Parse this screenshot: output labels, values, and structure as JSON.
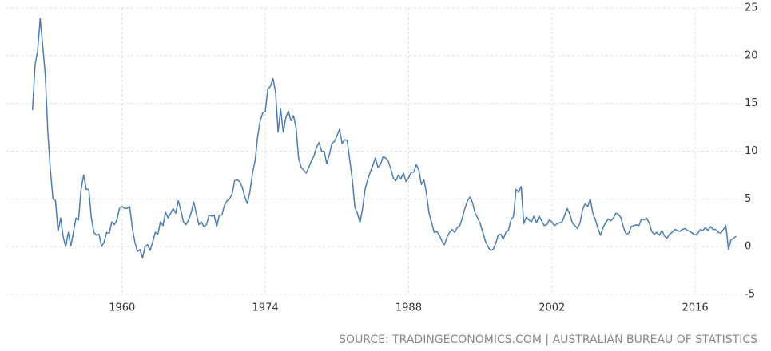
{
  "chart_data": {
    "type": "line",
    "source": "SOURCE: TRADINGECONOMICS.COM | AUSTRALIAN BUREAU OF STATISTICS",
    "xlim": [
      1948.7,
      2021.3
    ],
    "ylim": [
      -5,
      25
    ],
    "xticks": [
      1960,
      1974,
      1988,
      2002,
      2016
    ],
    "yticks": [
      -5,
      0,
      5,
      10,
      15,
      20,
      25
    ],
    "grid": true,
    "series": [
      {
        "color": "#4a7db3",
        "x": [
          1951.25,
          1951.5,
          1951.75,
          1952,
          1952.25,
          1952.5,
          1952.75,
          1953,
          1953.25,
          1953.5,
          1953.75,
          1954,
          1954.25,
          1954.5,
          1954.75,
          1955,
          1955.25,
          1955.5,
          1955.75,
          1956,
          1956.25,
          1956.5,
          1956.75,
          1957,
          1957.25,
          1957.5,
          1957.75,
          1958,
          1958.25,
          1958.5,
          1958.75,
          1959,
          1959.25,
          1959.5,
          1959.75,
          1960,
          1960.25,
          1960.5,
          1960.75,
          1961,
          1961.25,
          1961.5,
          1961.75,
          1962,
          1962.25,
          1962.5,
          1962.75,
          1963,
          1963.25,
          1963.5,
          1963.75,
          1964,
          1964.25,
          1964.5,
          1964.75,
          1965,
          1965.25,
          1965.5,
          1965.75,
          1966,
          1966.25,
          1966.5,
          1966.75,
          1967,
          1967.25,
          1967.5,
          1967.75,
          1968,
          1968.25,
          1968.5,
          1968.75,
          1969,
          1969.25,
          1969.5,
          1969.75,
          1970,
          1970.25,
          1970.5,
          1970.75,
          1971,
          1971.25,
          1971.5,
          1971.75,
          1972,
          1972.25,
          1972.5,
          1972.75,
          1973,
          1973.25,
          1973.5,
          1973.75,
          1974,
          1974.25,
          1974.5,
          1974.75,
          1975,
          1975.25,
          1975.5,
          1975.75,
          1976,
          1976.25,
          1976.5,
          1976.75,
          1977,
          1977.25,
          1977.5,
          1977.75,
          1978,
          1978.25,
          1978.5,
          1978.75,
          1979,
          1979.25,
          1979.5,
          1979.75,
          1980,
          1980.25,
          1980.5,
          1980.75,
          1981,
          1981.25,
          1981.5,
          1981.75,
          1982,
          1982.25,
          1982.5,
          1982.75,
          1983,
          1983.25,
          1983.5,
          1983.75,
          1984,
          1984.25,
          1984.5,
          1984.75,
          1985,
          1985.25,
          1985.5,
          1985.75,
          1986,
          1986.25,
          1986.5,
          1986.75,
          1987,
          1987.25,
          1987.5,
          1987.75,
          1988,
          1988.25,
          1988.5,
          1988.75,
          1989,
          1989.25,
          1989.5,
          1989.75,
          1990,
          1990.25,
          1990.5,
          1990.75,
          1991,
          1991.25,
          1991.5,
          1991.75,
          1992,
          1992.25,
          1992.5,
          1992.75,
          1993,
          1993.25,
          1993.5,
          1993.75,
          1994,
          1994.25,
          1994.5,
          1994.75,
          1995,
          1995.25,
          1995.5,
          1995.75,
          1996,
          1996.25,
          1996.5,
          1996.75,
          1997,
          1997.25,
          1997.5,
          1997.75,
          1998,
          1998.25,
          1998.5,
          1998.75,
          1999,
          1999.25,
          1999.5,
          1999.75,
          2000,
          2000.25,
          2000.5,
          2000.75,
          2001,
          2001.25,
          2001.5,
          2001.75,
          2002,
          2002.25,
          2002.5,
          2002.75,
          2003,
          2003.25,
          2003.5,
          2003.75,
          2004,
          2004.25,
          2004.5,
          2004.75,
          2005,
          2005.25,
          2005.5,
          2005.75,
          2006,
          2006.25,
          2006.5,
          2006.75,
          2007,
          2007.25,
          2007.5,
          2007.75,
          2008,
          2008.25,
          2008.5,
          2008.75,
          2009,
          2009.25,
          2009.5,
          2009.75,
          2010,
          2010.25,
          2010.5,
          2010.75,
          2011,
          2011.25,
          2011.5,
          2011.75,
          2012,
          2012.25,
          2012.5,
          2012.75,
          2013,
          2013.25,
          2013.5,
          2013.75,
          2014,
          2014.25,
          2014.5,
          2014.75,
          2015,
          2015.25,
          2015.5,
          2015.75,
          2016,
          2016.25,
          2016.5,
          2016.75,
          2017,
          2017.25,
          2017.5,
          2017.75,
          2018,
          2018.25,
          2018.5,
          2018.75,
          2019,
          2019.25,
          2019.5,
          2019.75,
          2020
        ],
        "values": [
          14.3,
          19,
          20.5,
          23.9,
          21,
          18,
          12,
          8,
          5,
          4.8,
          1.6,
          3,
          1,
          0,
          1.5,
          0.1,
          1.5,
          3,
          2.8,
          6,
          7.5,
          6,
          6,
          3,
          1.5,
          1.2,
          1.3,
          0,
          0.5,
          1.5,
          1.4,
          2.6,
          2.3,
          2.8,
          4,
          4.2,
          4,
          4,
          4.2,
          2,
          0.5,
          -0.5,
          -0.3,
          -1.2,
          0,
          0.2,
          -0.4,
          0.5,
          1.5,
          1.3,
          2.6,
          2.2,
          3.6,
          3,
          3.5,
          4,
          3.5,
          4.8,
          3.8,
          2.6,
          2.3,
          2.8,
          3.5,
          4.7,
          3.5,
          2.3,
          2.6,
          2.1,
          2.3,
          3.3,
          3.2,
          3.3,
          2.1,
          3.3,
          3.3,
          4.3,
          4.8,
          5,
          5.5,
          6.9,
          7,
          6.8,
          6.2,
          5.2,
          4.5,
          5.8,
          7.7,
          9,
          11.5,
          13.2,
          14,
          14.2,
          16.5,
          16.8,
          17.6,
          16.2,
          12,
          14.4,
          12,
          13.5,
          14.2,
          13.2,
          13.7,
          12.5,
          9.3,
          8.3,
          8,
          7.7,
          8.3,
          9,
          9.5,
          10.4,
          10.9,
          10,
          10,
          8.7,
          9.6,
          10.8,
          11,
          11.6,
          12.3,
          10.8,
          11.2,
          11.1,
          9.1,
          7,
          4.1,
          3.5,
          2.5,
          4,
          6,
          7,
          7.8,
          8.5,
          9.3,
          8.3,
          8.6,
          9.4,
          9.3,
          9,
          8.2,
          7.2,
          6.9,
          7.5,
          7.1,
          7.7,
          6.8,
          7.2,
          7.8,
          7.8,
          8.6,
          8,
          6.5,
          7,
          5.5,
          3.5,
          2.5,
          1.5,
          1.6,
          1.2,
          0.6,
          0.2,
          1,
          1.5,
          1.8,
          1.5,
          2,
          2.2,
          3,
          4,
          4.8,
          5.2,
          4.6,
          3.5,
          3,
          2.4,
          1.5,
          0.6,
          0,
          -0.4,
          -0.3,
          0.3,
          1.2,
          1.3,
          0.8,
          1.5,
          1.7,
          2.8,
          3.2,
          6,
          5.7,
          6.3,
          2.4,
          3.1,
          2.8,
          2.6,
          3.2,
          2.5,
          3.2,
          2.7,
          2.2,
          2.3,
          2.8,
          2.6,
          2.2,
          2.4,
          2.5,
          2.6,
          3.3,
          4,
          3.4,
          2.5,
          2.2,
          1.9,
          2.5,
          3.9,
          4.5,
          4.2,
          5,
          3.5,
          2.8,
          1.9,
          1.2,
          2,
          2.5,
          2.9,
          2.7,
          3,
          3.5,
          3.4,
          3,
          2,
          1.3,
          1.4,
          2.1,
          2.2,
          2.3,
          2.2,
          2.9,
          2.8,
          3,
          2.5,
          1.6,
          1.3,
          1.5,
          1.2,
          1.7,
          1.1,
          0.9,
          1.3,
          1.5,
          1.8,
          1.7,
          1.6,
          1.8,
          1.9,
          1.7,
          1.6,
          1.4,
          1.2,
          1.4,
          1.8,
          1.7,
          2,
          1.7,
          2.1,
          1.8,
          1.8,
          1.5,
          1.4,
          1.8,
          2.2,
          -0.3,
          0.7,
          0.9,
          1.1
        ]
      }
    ]
  }
}
